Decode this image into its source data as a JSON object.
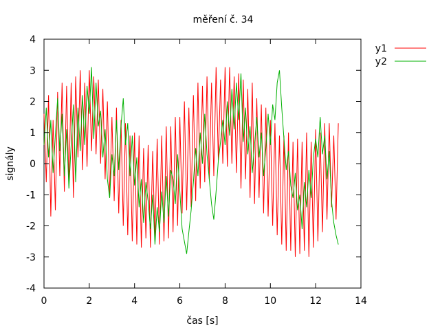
{
  "chart_data": {
    "type": "line",
    "title": "měření č. 34",
    "xlabel": "čas [s]",
    "ylabel": "signály",
    "xlim": [
      0,
      14
    ],
    "ylim": [
      -4,
      4
    ],
    "xticks": [
      0,
      2,
      4,
      6,
      8,
      10,
      12,
      14
    ],
    "yticks": [
      -4,
      -3,
      -2,
      -1,
      0,
      1,
      2,
      3,
      4
    ],
    "grid": false,
    "legend_position": "top-right outside",
    "series": [
      {
        "name": "y1",
        "color": "#ff0000",
        "x": [
          0,
          0.1,
          0.2,
          0.3,
          0.4,
          0.5,
          0.6,
          0.7,
          0.8,
          0.9,
          1.0,
          1.1,
          1.2,
          1.3,
          1.4,
          1.5,
          1.6,
          1.7,
          1.8,
          1.9,
          2.0,
          2.1,
          2.2,
          2.3,
          2.4,
          2.5,
          2.6,
          2.7,
          2.8,
          2.9,
          3.0,
          3.1,
          3.2,
          3.3,
          3.4,
          3.5,
          3.6,
          3.7,
          3.8,
          3.9,
          4.0,
          4.1,
          4.2,
          4.3,
          4.4,
          4.5,
          4.6,
          4.7,
          4.8,
          4.9,
          5.0,
          5.1,
          5.2,
          5.3,
          5.4,
          5.5,
          5.6,
          5.7,
          5.8,
          5.9,
          6.0,
          6.1,
          6.2,
          6.3,
          6.4,
          6.5,
          6.6,
          6.7,
          6.8,
          6.9,
          7.0,
          7.1,
          7.2,
          7.3,
          7.4,
          7.5,
          7.6,
          7.7,
          7.8,
          7.9,
          8.0,
          8.1,
          8.2,
          8.3,
          8.4,
          8.5,
          8.6,
          8.7,
          8.8,
          8.9,
          9.0,
          9.1,
          9.2,
          9.3,
          9.4,
          9.5,
          9.6,
          9.7,
          9.8,
          9.9,
          10.0,
          10.1,
          10.2,
          10.3,
          10.4,
          10.5,
          10.6,
          10.7,
          10.8,
          10.9,
          11.0,
          11.1,
          11.2,
          11.3,
          11.4,
          11.5,
          11.6,
          11.7,
          11.8,
          11.9,
          12.0,
          12.1,
          12.2,
          12.3,
          12.4,
          12.5,
          12.6,
          12.7,
          12.8,
          12.9,
          13.0
        ],
        "y": [
          1.6,
          -0.6,
          2.2,
          -1.7,
          1.4,
          -1.5,
          2.3,
          -0.4,
          2.6,
          -0.9,
          2.5,
          -0.7,
          2.6,
          -1.1,
          2.8,
          0.2,
          3.0,
          -0.2,
          2.6,
          -0.1,
          3.0,
          0.4,
          2.8,
          0.3,
          2.7,
          0.0,
          2.4,
          -0.5,
          2.0,
          -1.1,
          1.5,
          -1.2,
          1.8,
          -1.6,
          1.4,
          -2.0,
          1.3,
          -2.3,
          0.9,
          -2.5,
          1.0,
          -2.6,
          0.9,
          -2.7,
          0.5,
          -2.4,
          0.6,
          -2.7,
          0.4,
          -2.5,
          0.8,
          -2.6,
          0.9,
          -2.5,
          1.2,
          -2.4,
          1.2,
          -2.2,
          1.5,
          -2.0,
          1.5,
          -1.6,
          2.0,
          -1.5,
          1.8,
          -1.4,
          2.2,
          -1.2,
          2.6,
          -0.8,
          2.5,
          -0.6,
          2.8,
          -0.5,
          2.6,
          -0.4,
          3.1,
          0.1,
          2.7,
          0.0,
          3.1,
          -0.1,
          3.1,
          0.0,
          2.8,
          -0.3,
          2.9,
          -0.8,
          2.7,
          -0.5,
          2.4,
          -1.1,
          2.6,
          -1.3,
          2.1,
          -1.1,
          1.9,
          -1.6,
          1.8,
          -1.7,
          1.4,
          -2.0,
          1.3,
          -2.3,
          0.9,
          -2.6,
          0.9,
          -2.8,
          1.0,
          -2.8,
          0.7,
          -3.0,
          0.8,
          -2.9,
          0.7,
          -2.8,
          1.0,
          -3.0,
          0.7,
          -2.7,
          1.1,
          -2.5,
          1.0,
          -2.2,
          1.3,
          -1.8,
          1.3,
          -1.4,
          0.9,
          -1.8,
          1.3
        ]
      },
      {
        "name": "y2",
        "color": "#00b000",
        "x": [
          0,
          0.1,
          0.2,
          0.3,
          0.4,
          0.5,
          0.6,
          0.7,
          0.8,
          0.9,
          1.0,
          1.1,
          1.2,
          1.3,
          1.4,
          1.5,
          1.6,
          1.7,
          1.8,
          1.9,
          2.0,
          2.1,
          2.2,
          2.3,
          2.4,
          2.5,
          2.6,
          2.7,
          2.8,
          2.9,
          3.0,
          3.1,
          3.2,
          3.3,
          3.4,
          3.5,
          3.6,
          3.7,
          3.8,
          3.9,
          4.0,
          4.1,
          4.2,
          4.3,
          4.4,
          4.5,
          4.6,
          4.7,
          4.8,
          4.9,
          5.0,
          5.1,
          5.2,
          5.3,
          5.4,
          5.5,
          5.6,
          5.7,
          5.8,
          5.9,
          6.0,
          6.1,
          6.2,
          6.3,
          6.4,
          6.5,
          6.6,
          6.7,
          6.8,
          6.9,
          7.0,
          7.1,
          7.2,
          7.3,
          7.4,
          7.5,
          7.6,
          7.7,
          7.8,
          7.9,
          8.0,
          8.1,
          8.2,
          8.3,
          8.4,
          8.5,
          8.6,
          8.7,
          8.8,
          8.9,
          9.0,
          9.1,
          9.2,
          9.3,
          9.4,
          9.5,
          9.6,
          9.7,
          9.8,
          9.9,
          10.0,
          10.1,
          10.2,
          10.3,
          10.4,
          10.5,
          10.6,
          10.7,
          10.8,
          10.9,
          11.0,
          11.1,
          11.2,
          11.3,
          11.4,
          11.5,
          11.6,
          11.7,
          11.8,
          11.9,
          12.0,
          12.1,
          12.2,
          12.3,
          12.4,
          12.5,
          12.6,
          12.7,
          12.8,
          12.9,
          13.0
        ],
        "y": [
          0.6,
          1.8,
          0.2,
          1.4,
          -0.3,
          0.9,
          2.1,
          0.4,
          1.6,
          -0.4,
          1.1,
          -0.8,
          0.6,
          1.9,
          -0.6,
          1.8,
          0.4,
          2.2,
          0.6,
          2.5,
          1.6,
          3.1,
          0.8,
          2.6,
          1.2,
          1.7,
          0.2,
          1.1,
          -0.5,
          -1.1,
          0.3,
          -0.4,
          1.4,
          -0.2,
          1.2,
          2.1,
          0.6,
          1.3,
          -0.4,
          0.9,
          -0.7,
          0.2,
          -1.4,
          -0.5,
          -1.9,
          -0.6,
          -1.2,
          -2.1,
          -1.0,
          -2.6,
          -1.4,
          -2.2,
          -0.9,
          -1.9,
          -0.4,
          -1.7,
          -0.2,
          -0.5,
          -1.3,
          0.3,
          -0.9,
          -2.1,
          -2.5,
          -2.9,
          -2.2,
          -1.5,
          -0.6,
          0.5,
          -0.4,
          1.0,
          0.0,
          1.6,
          0.3,
          -0.5,
          -1.3,
          -1.8,
          -0.9,
          0.1,
          0.7,
          1.4,
          0.6,
          2.0,
          0.9,
          2.4,
          1.1,
          2.6,
          1.4,
          2.9,
          0.7,
          1.8,
          0.3,
          1.2,
          -0.3,
          0.6,
          1.5,
          0.2,
          1.0,
          -0.4,
          0.5,
          1.6,
          0.6,
          1.9,
          1.4,
          2.6,
          3.0,
          1.8,
          0.8,
          -0.2,
          0.4,
          -0.7,
          -1.1,
          -0.3,
          -1.5,
          -1.0,
          -2.1,
          -0.6,
          -1.4,
          -0.2,
          -1.1,
          0.2,
          0.8,
          0.2,
          1.5,
          0.3,
          0.9,
          -0.5,
          0.4,
          -1.2,
          -1.9,
          -2.3,
          -2.6
        ]
      }
    ]
  }
}
